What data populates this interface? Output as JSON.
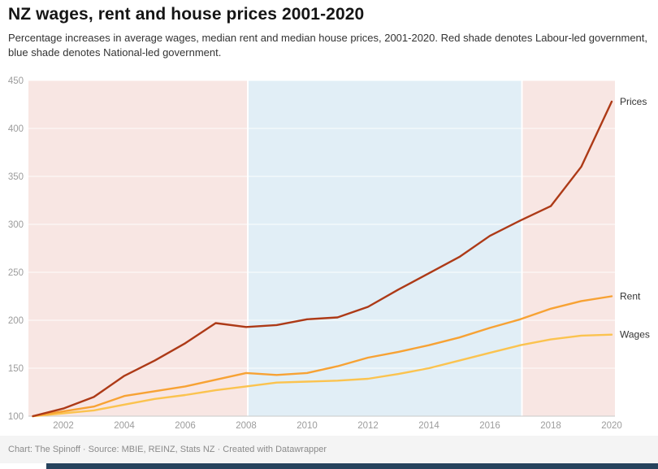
{
  "header": {
    "title": "NZ wages, rent and house prices 2001-2020",
    "description_line1": "Percentage increases in average wages, median rent and median house prices, 2001-2020. Red shade denotes Labour-led government,",
    "description_line2": "blue shade denotes National-led government."
  },
  "chart_data": {
    "type": "line",
    "title": "NZ wages, rent and house prices 2001-2020",
    "x": [
      2001,
      2002,
      2003,
      2004,
      2005,
      2006,
      2007,
      2008,
      2009,
      2010,
      2011,
      2012,
      2013,
      2014,
      2015,
      2016,
      2017,
      2018,
      2019,
      2020
    ],
    "series": [
      {
        "name": "Prices",
        "color": "#ad3a17",
        "values": [
          100,
          108,
          120,
          142,
          158,
          176,
          197,
          193,
          195,
          201,
          203,
          214,
          232,
          249,
          266,
          288,
          304,
          319,
          360,
          428
        ]
      },
      {
        "name": "Rent",
        "color": "#f7a234",
        "values": [
          100,
          105,
          110,
          121,
          126,
          131,
          138,
          145,
          143,
          145,
          152,
          161,
          167,
          174,
          182,
          192,
          201,
          212,
          220,
          225
        ]
      },
      {
        "name": "Wages",
        "color": "#fbc34f",
        "values": [
          100,
          103,
          106,
          112,
          118,
          122,
          127,
          131,
          135,
          136,
          137,
          139,
          144,
          150,
          158,
          166,
          174,
          180,
          184,
          185
        ]
      }
    ],
    "ylim": [
      100,
      450
    ],
    "yticks": [
      100,
      150,
      200,
      250,
      300,
      350,
      400,
      450
    ],
    "xticks": [
      2002,
      2004,
      2006,
      2008,
      2010,
      2012,
      2014,
      2016,
      2018,
      2020
    ],
    "grid": true,
    "legend_position": "line-end-labels-right",
    "shading": [
      {
        "from": 2001,
        "to": 2008,
        "color": "#f8e6e3",
        "label": "Labour-led government"
      },
      {
        "from": 2008,
        "to": 2017,
        "color": "#e1eef6",
        "label": "National-led government"
      },
      {
        "from": 2017,
        "to": 2020,
        "color": "#f8e6e3",
        "label": "Labour-led government"
      }
    ]
  },
  "footer": {
    "credit": "Chart: The Spinoff · Source: MBIE, REINZ, Stats NZ · Created with Datawrapper"
  },
  "colors": {
    "prices_line": "#ad3a17",
    "rent_line": "#f7a234",
    "wages_line": "#fbc34f",
    "labour_shade": "#f8e6e3",
    "national_shade": "#e1eef6",
    "tick_label": "#9c9c9c",
    "axis_baseline": "#c9c9c9",
    "footer_bg": "#f4f4f4",
    "bottom_bar": "#26435d"
  }
}
